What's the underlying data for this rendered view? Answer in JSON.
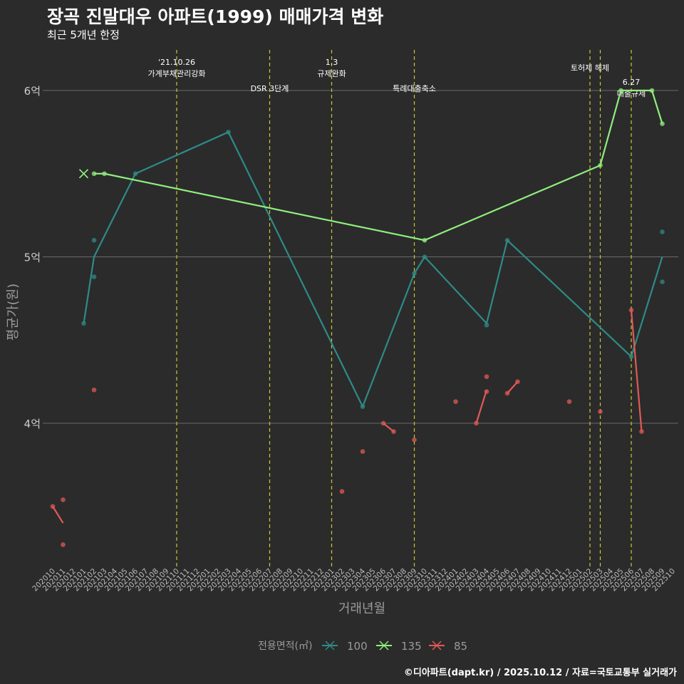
{
  "title": "장곡 진말대우 아파트(1999) 매매가격 변화",
  "subtitle": "최근 5개년 한정",
  "credit": "©디아파트(dapt.kr) / 2025.10.12 / 자료=국토교통부 실거래가",
  "colors": {
    "background": "#2b2b2b",
    "grid": "#6a6a6a",
    "event_line": "#c8c832",
    "s100": "#2e8b87",
    "s135": "#90ee7e",
    "s85": "#e05a57"
  },
  "chart_data": {
    "type": "line",
    "xlabel": "거래년월",
    "ylabel": "평균가(원)",
    "ylim": [
      3.15,
      6.25
    ],
    "y_ticks": [
      {
        "value": 4,
        "label": "4억"
      },
      {
        "value": 5,
        "label": "5억"
      },
      {
        "value": 6,
        "label": "6억"
      }
    ],
    "x_ticks": [
      "202010",
      "202011",
      "202012",
      "202101",
      "202102",
      "202103",
      "202104",
      "202105",
      "202106",
      "202107",
      "202108",
      "202109",
      "202110",
      "202111",
      "202112",
      "202201",
      "202202",
      "202203",
      "202204",
      "202205",
      "202206",
      "202207",
      "202208",
      "202209",
      "202210",
      "202211",
      "202212",
      "202301",
      "202302",
      "202303",
      "202304",
      "202305",
      "202306",
      "202307",
      "202308",
      "202309",
      "202310",
      "202311",
      "202312",
      "202401",
      "202402",
      "202403",
      "202404",
      "202405",
      "202406",
      "202407",
      "202408",
      "202409",
      "202410",
      "202411",
      "202412",
      "202501",
      "202502",
      "202503",
      "202504",
      "202505",
      "202506",
      "202507",
      "202508",
      "202509",
      "202510"
    ],
    "legend": {
      "title": "전용면적(㎡)",
      "position": "bottom",
      "items": [
        "100",
        "135",
        "85"
      ]
    },
    "events": [
      {
        "date": "202110",
        "label": "'21.10.26\n가계부채관리강화",
        "tier": 1
      },
      {
        "date": "202207",
        "label": "DSR 3단계",
        "tier": 3
      },
      {
        "date": "202301",
        "label": "1.3\n규제완화",
        "tier": 1
      },
      {
        "date": "202309",
        "label": "특례대출축소",
        "tier": 3
      },
      {
        "date": "202502",
        "label": "토허제 해제",
        "tier": 2
      },
      {
        "date": "202503",
        "label": "",
        "tier": 0
      },
      {
        "date": "202506",
        "label": "6.27\n대출규제",
        "tier": 2.6
      }
    ],
    "series": [
      {
        "name": "100",
        "line": [
          [
            "202101",
            4.6
          ],
          [
            "202102",
            5.0
          ],
          [
            "202106",
            5.5
          ],
          [
            "202203",
            5.75
          ],
          [
            "202304",
            4.1
          ],
          [
            "202309",
            4.9
          ],
          [
            "202310",
            5.0
          ],
          [
            "202404",
            4.6
          ],
          [
            "202406",
            5.1
          ],
          [
            "202506",
            4.4
          ],
          [
            "202509",
            5.0
          ]
        ],
        "points": [
          [
            "202101",
            4.6
          ],
          [
            "202102",
            5.1
          ],
          [
            "202102",
            4.88
          ],
          [
            "202106",
            5.5
          ],
          [
            "202203",
            5.75
          ],
          [
            "202304",
            4.1
          ],
          [
            "202309",
            4.9
          ],
          [
            "202310",
            5.0
          ],
          [
            "202404",
            4.59
          ],
          [
            "202406",
            5.1
          ],
          [
            "202506",
            4.4
          ],
          [
            "202509",
            5.15
          ],
          [
            "202509",
            4.85
          ]
        ]
      },
      {
        "name": "135",
        "line": [
          [
            "202102",
            5.5
          ],
          [
            "202103",
            5.5
          ],
          [
            "202310",
            5.1
          ],
          [
            "202503",
            5.55
          ],
          [
            "202505",
            6.0
          ],
          [
            "202508",
            6.0
          ],
          [
            "202509",
            5.8
          ]
        ],
        "points": [
          [
            "202102",
            5.5
          ],
          [
            "202103",
            5.5
          ],
          [
            "202310",
            5.1
          ],
          [
            "202503",
            5.55
          ],
          [
            "202505",
            6.0
          ],
          [
            "202508",
            6.0
          ],
          [
            "202509",
            5.8
          ]
        ]
      },
      {
        "name": "85",
        "segments": [
          [
            [
              "202010",
              3.5
            ],
            [
              "202011",
              3.4
            ]
          ],
          [
            [
              "202306",
              4.0
            ],
            [
              "202307",
              3.95
            ]
          ],
          [
            [
              "202403",
              4.0
            ],
            [
              "202404",
              4.2
            ]
          ],
          [
            [
              "202406",
              4.18
            ],
            [
              "202407",
              4.25
            ]
          ],
          [
            [
              "202506",
              4.68
            ],
            [
              "202507",
              3.95
            ]
          ]
        ],
        "points": [
          [
            "202010",
            3.5
          ],
          [
            "202011",
            3.54
          ],
          [
            "202011",
            3.27
          ],
          [
            "202102",
            4.2
          ],
          [
            "202302",
            3.59
          ],
          [
            "202304",
            3.83
          ],
          [
            "202306",
            4.0
          ],
          [
            "202307",
            3.95
          ],
          [
            "202309",
            3.9
          ],
          [
            "202401",
            4.13
          ],
          [
            "202403",
            4.0
          ],
          [
            "202404",
            4.28
          ],
          [
            "202404",
            4.19
          ],
          [
            "202406",
            4.18
          ],
          [
            "202407",
            4.25
          ],
          [
            "202412",
            4.13
          ],
          [
            "202503",
            4.07
          ],
          [
            "202506",
            4.68
          ],
          [
            "202507",
            3.95
          ]
        ]
      }
    ]
  }
}
